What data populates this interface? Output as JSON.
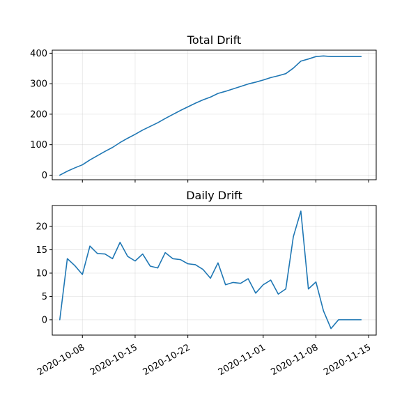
{
  "chart_data": [
    {
      "type": "line",
      "title": "Total Drift",
      "x_type": "date",
      "xlim": [
        "2020-10-04",
        "2020-11-16"
      ],
      "ylim": [
        -15,
        410
      ],
      "yticks": [
        0,
        100,
        200,
        300,
        400
      ],
      "xticks": [
        "2020-10-08",
        "2020-10-15",
        "2020-10-22",
        "2020-11-01",
        "2020-11-08",
        "2020-11-15"
      ],
      "show_xtick_labels": false,
      "grid": true,
      "color": "#1f77b4",
      "x": [
        "2020-10-05",
        "2020-10-06",
        "2020-10-07",
        "2020-10-08",
        "2020-10-09",
        "2020-10-10",
        "2020-10-11",
        "2020-10-12",
        "2020-10-13",
        "2020-10-14",
        "2020-10-15",
        "2020-10-16",
        "2020-10-17",
        "2020-10-18",
        "2020-10-19",
        "2020-10-20",
        "2020-10-21",
        "2020-10-22",
        "2020-10-23",
        "2020-10-24",
        "2020-10-25",
        "2020-10-26",
        "2020-10-27",
        "2020-10-28",
        "2020-10-29",
        "2020-10-30",
        "2020-10-31",
        "2020-11-01",
        "2020-11-02",
        "2020-11-03",
        "2020-11-04",
        "2020-11-05",
        "2020-11-06",
        "2020-11-07",
        "2020-11-08",
        "2020-11-09",
        "2020-11-10",
        "2020-11-11",
        "2020-11-12",
        "2020-11-13",
        "2020-11-14"
      ],
      "values": [
        0,
        13,
        24,
        34,
        50,
        64,
        78,
        91,
        107,
        121,
        134,
        148,
        160,
        172,
        186,
        199,
        212,
        224,
        236,
        247,
        256,
        268,
        275,
        283,
        291,
        299,
        305,
        312,
        320,
        326,
        333,
        351,
        374,
        381,
        389,
        391,
        389,
        389,
        389,
        389,
        389
      ]
    },
    {
      "type": "line",
      "title": "Daily Drift",
      "x_type": "date",
      "xlim": [
        "2020-10-04",
        "2020-11-16"
      ],
      "ylim": [
        -3.3,
        24.5
      ],
      "yticks": [
        0,
        5,
        10,
        15,
        20
      ],
      "xticks": [
        "2020-10-08",
        "2020-10-15",
        "2020-10-22",
        "2020-11-01",
        "2020-11-08",
        "2020-11-15"
      ],
      "show_xtick_labels": true,
      "grid": true,
      "color": "#1f77b4",
      "x": [
        "2020-10-05",
        "2020-10-06",
        "2020-10-07",
        "2020-10-08",
        "2020-10-09",
        "2020-10-10",
        "2020-10-11",
        "2020-10-12",
        "2020-10-13",
        "2020-10-14",
        "2020-10-15",
        "2020-10-16",
        "2020-10-17",
        "2020-10-18",
        "2020-10-19",
        "2020-10-20",
        "2020-10-21",
        "2020-10-22",
        "2020-10-23",
        "2020-10-24",
        "2020-10-25",
        "2020-10-26",
        "2020-10-27",
        "2020-10-28",
        "2020-10-29",
        "2020-10-30",
        "2020-10-31",
        "2020-11-01",
        "2020-11-02",
        "2020-11-03",
        "2020-11-04",
        "2020-11-05",
        "2020-11-06",
        "2020-11-07",
        "2020-11-08",
        "2020-11-09",
        "2020-11-10",
        "2020-11-11",
        "2020-11-12",
        "2020-11-13",
        "2020-11-14"
      ],
      "values": [
        0,
        13.1,
        11.6,
        9.7,
        15.8,
        14.2,
        14.1,
        13.1,
        16.6,
        13.6,
        12.6,
        14.1,
        11.5,
        11.1,
        14.4,
        13.1,
        12.9,
        12.0,
        11.8,
        10.8,
        8.9,
        12.2,
        7.5,
        8.0,
        7.8,
        8.8,
        5.7,
        7.5,
        8.5,
        5.5,
        6.6,
        17.8,
        23.3,
        6.6,
        8.1,
        1.9,
        -1.9,
        0,
        0,
        0,
        0
      ]
    }
  ]
}
